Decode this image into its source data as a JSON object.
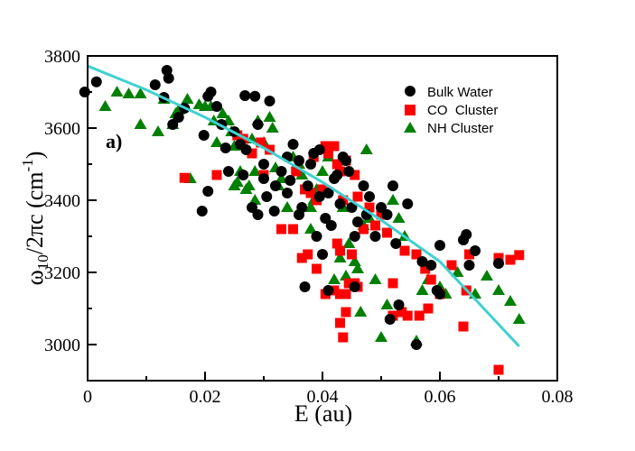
{
  "chart_data": {
    "type": "scatter",
    "panel_label": "a)",
    "xlabel": "E (au)",
    "ylabel": {
      "omega": "ω",
      "omega_sub": "10",
      "rest": "/2πc (cm",
      "exp": "-1",
      "close": ")"
    },
    "xlim": [
      0,
      0.08
    ],
    "ylim": [
      2900,
      3800
    ],
    "x_ticks": [
      0,
      0.02,
      0.04,
      0.06,
      0.08
    ],
    "x_tick_labels": [
      "0",
      "0.02",
      "0.04",
      "0.06",
      "0.08"
    ],
    "y_ticks": [
      3000,
      3200,
      3400,
      3600,
      3800
    ],
    "y_tick_labels": [
      "3000",
      "3200",
      "3400",
      "3600",
      "3800"
    ],
    "legend_position": "top-right",
    "series": [
      {
        "name": "Bulk Water",
        "marker": "circle",
        "color": "#000000",
        "points": [
          [
            -0.0005,
            3700
          ],
          [
            0.0015,
            3728
          ],
          [
            0.0115,
            3720
          ],
          [
            0.0135,
            3760
          ],
          [
            0.0138,
            3738
          ],
          [
            0.013,
            3685
          ],
          [
            0.0155,
            3630
          ],
          [
            0.0165,
            3655
          ],
          [
            0.0145,
            3610
          ],
          [
            0.0205,
            3688
          ],
          [
            0.021,
            3700
          ],
          [
            0.022,
            3660
          ],
          [
            0.0228,
            3610
          ],
          [
            0.0198,
            3580
          ],
          [
            0.0235,
            3545
          ],
          [
            0.026,
            3555
          ],
          [
            0.0268,
            3690
          ],
          [
            0.0285,
            3688
          ],
          [
            0.031,
            3675
          ],
          [
            0.029,
            3610
          ],
          [
            0.0195,
            3370
          ],
          [
            0.0205,
            3425
          ],
          [
            0.024,
            3480
          ],
          [
            0.0265,
            3470
          ],
          [
            0.028,
            3380
          ],
          [
            0.029,
            3360
          ],
          [
            0.03,
            3460
          ],
          [
            0.0305,
            3410
          ],
          [
            0.032,
            3440
          ],
          [
            0.0318,
            3370
          ],
          [
            0.033,
            3480
          ],
          [
            0.034,
            3520
          ],
          [
            0.0345,
            3455
          ],
          [
            0.035,
            3555
          ],
          [
            0.036,
            3510
          ],
          [
            0.0365,
            3380
          ],
          [
            0.0375,
            3440
          ],
          [
            0.038,
            3500
          ],
          [
            0.0385,
            3530
          ],
          [
            0.039,
            3300
          ],
          [
            0.0395,
            3410
          ],
          [
            0.04,
            3250
          ],
          [
            0.0405,
            3350
          ],
          [
            0.041,
            3420
          ],
          [
            0.0415,
            3330
          ],
          [
            0.042,
            3460
          ],
          [
            0.0425,
            3470
          ],
          [
            0.043,
            3390
          ],
          [
            0.0435,
            3520
          ],
          [
            0.0445,
            3480
          ],
          [
            0.045,
            3380
          ],
          [
            0.0455,
            3300
          ],
          [
            0.046,
            3340
          ],
          [
            0.047,
            3440
          ],
          [
            0.0475,
            3360
          ],
          [
            0.048,
            3410
          ],
          [
            0.049,
            3300
          ],
          [
            0.05,
            3380
          ],
          [
            0.051,
            3360
          ],
          [
            0.052,
            3440
          ],
          [
            0.0525,
            3280
          ],
          [
            0.053,
            3110
          ],
          [
            0.0545,
            3390
          ],
          [
            0.056,
            3000
          ],
          [
            0.057,
            3230
          ],
          [
            0.0585,
            3220
          ],
          [
            0.0595,
            3150
          ],
          [
            0.06,
            3275
          ],
          [
            0.064,
            3290
          ],
          [
            0.0645,
            3305
          ],
          [
            0.065,
            3220
          ],
          [
            0.066,
            3260
          ],
          [
            0.07,
            3225
          ],
          [
            0.0395,
            3540
          ],
          [
            0.044,
            3510
          ],
          [
            0.037,
            3160
          ],
          [
            0.041,
            3150
          ],
          [
            0.0455,
            3160
          ],
          [
            0.0515,
            3070
          ],
          [
            0.06,
            3140
          ],
          [
            0.025,
            3590
          ],
          [
            0.027,
            3540
          ],
          [
            0.03,
            3500
          ],
          [
            0.034,
            3420
          ],
          [
            0.036,
            3360
          ]
        ]
      },
      {
        "name": "CO  Cluster",
        "marker": "square",
        "color": "#ff0000",
        "points": [
          [
            0.0165,
            3462
          ],
          [
            0.022,
            3470
          ],
          [
            0.0255,
            3580
          ],
          [
            0.0265,
            3570
          ],
          [
            0.028,
            3530
          ],
          [
            0.0295,
            3560
          ],
          [
            0.03,
            3470
          ],
          [
            0.031,
            3540
          ],
          [
            0.033,
            3320
          ],
          [
            0.035,
            3320
          ],
          [
            0.0355,
            3480
          ],
          [
            0.037,
            3430
          ],
          [
            0.038,
            3420
          ],
          [
            0.0385,
            3520
          ],
          [
            0.039,
            3400
          ],
          [
            0.04,
            3430
          ],
          [
            0.0405,
            3550
          ],
          [
            0.041,
            3530
          ],
          [
            0.042,
            3550
          ],
          [
            0.0425,
            3500
          ],
          [
            0.043,
            3480
          ],
          [
            0.0435,
            3400
          ],
          [
            0.044,
            3510
          ],
          [
            0.0455,
            3470
          ],
          [
            0.046,
            3410
          ],
          [
            0.0365,
            3240
          ],
          [
            0.0375,
            3250
          ],
          [
            0.039,
            3210
          ],
          [
            0.0405,
            3140
          ],
          [
            0.042,
            3150
          ],
          [
            0.0425,
            3280
          ],
          [
            0.043,
            3260
          ],
          [
            0.043,
            3140
          ],
          [
            0.044,
            3140
          ],
          [
            0.0445,
            3170
          ],
          [
            0.045,
            3250
          ],
          [
            0.0455,
            3170
          ],
          [
            0.046,
            3160
          ],
          [
            0.043,
            3060
          ],
          [
            0.0435,
            3020
          ],
          [
            0.044,
            3090
          ],
          [
            0.047,
            3320
          ],
          [
            0.049,
            3330
          ],
          [
            0.051,
            3310
          ],
          [
            0.052,
            3170
          ],
          [
            0.052,
            3080
          ],
          [
            0.0535,
            3090
          ],
          [
            0.054,
            3260
          ],
          [
            0.0545,
            3080
          ],
          [
            0.056,
            3250
          ],
          [
            0.0565,
            3080
          ],
          [
            0.0575,
            3210
          ],
          [
            0.058,
            3100
          ],
          [
            0.0585,
            3180
          ],
          [
            0.06,
            3140
          ],
          [
            0.062,
            3220
          ],
          [
            0.064,
            3050
          ],
          [
            0.0645,
            3150
          ],
          [
            0.065,
            3250
          ],
          [
            0.07,
            3240
          ],
          [
            0.072,
            3235
          ],
          [
            0.0735,
            3248
          ],
          [
            0.07,
            2930
          ],
          [
            0.048,
            3380
          ],
          [
            0.05,
            3360
          ]
        ]
      },
      {
        "name": "NH Cluster",
        "marker": "triangle",
        "color": "#008000",
        "points": [
          [
            0.003,
            3660
          ],
          [
            0.005,
            3700
          ],
          [
            0.007,
            3695
          ],
          [
            0.009,
            3695
          ],
          [
            0.009,
            3610
          ],
          [
            0.012,
            3590
          ],
          [
            0.013,
            3680
          ],
          [
            0.0145,
            3610
          ],
          [
            0.015,
            3640
          ],
          [
            0.0155,
            3650
          ],
          [
            0.0165,
            3665
          ],
          [
            0.017,
            3680
          ],
          [
            0.0175,
            3460
          ],
          [
            0.019,
            3665
          ],
          [
            0.02,
            3660
          ],
          [
            0.021,
            3660
          ],
          [
            0.0215,
            3620
          ],
          [
            0.022,
            3560
          ],
          [
            0.023,
            3640
          ],
          [
            0.024,
            3620
          ],
          [
            0.0245,
            3590
          ],
          [
            0.025,
            3440
          ],
          [
            0.0255,
            3450
          ],
          [
            0.026,
            3480
          ],
          [
            0.027,
            3430
          ],
          [
            0.0275,
            3440
          ],
          [
            0.028,
            3570
          ],
          [
            0.0285,
            3480
          ],
          [
            0.029,
            3620
          ],
          [
            0.03,
            3560
          ],
          [
            0.031,
            3630
          ],
          [
            0.0315,
            3600
          ],
          [
            0.032,
            3490
          ],
          [
            0.0325,
            3440
          ],
          [
            0.033,
            3460
          ],
          [
            0.034,
            3380
          ],
          [
            0.035,
            3520
          ],
          [
            0.036,
            3500
          ],
          [
            0.0365,
            3470
          ],
          [
            0.038,
            3320
          ],
          [
            0.0385,
            3400
          ],
          [
            0.039,
            3430
          ],
          [
            0.04,
            3480
          ],
          [
            0.041,
            3520
          ],
          [
            0.042,
            3180
          ],
          [
            0.043,
            3240
          ],
          [
            0.0435,
            3380
          ],
          [
            0.044,
            3190
          ],
          [
            0.0445,
            3280
          ],
          [
            0.0455,
            3230
          ],
          [
            0.046,
            3210
          ],
          [
            0.0465,
            3090
          ],
          [
            0.047,
            3330
          ],
          [
            0.0475,
            3540
          ],
          [
            0.048,
            3350
          ],
          [
            0.049,
            3180
          ],
          [
            0.05,
            3020
          ],
          [
            0.051,
            3110
          ],
          [
            0.053,
            3350
          ],
          [
            0.054,
            3300
          ],
          [
            0.056,
            3010
          ],
          [
            0.057,
            3150
          ],
          [
            0.058,
            3180
          ],
          [
            0.06,
            3160
          ],
          [
            0.061,
            3140
          ],
          [
            0.063,
            3200
          ],
          [
            0.066,
            3140
          ],
          [
            0.068,
            3190
          ],
          [
            0.07,
            3150
          ],
          [
            0.072,
            3120
          ],
          [
            0.0735,
            3070
          ],
          [
            0.052,
            3400
          ],
          [
            0.038,
            3380
          ],
          [
            0.025,
            3550
          ],
          [
            0.0285,
            3400
          ]
        ]
      },
      {
        "name": "fit",
        "type": "line",
        "color": "#40d0d0",
        "x": [
          0,
          0.01,
          0.02,
          0.03,
          0.04,
          0.05,
          0.06,
          0.0735
        ],
        "y": [
          3772,
          3706,
          3630,
          3545,
          3450,
          3345,
          3230,
          2995
        ]
      }
    ]
  }
}
